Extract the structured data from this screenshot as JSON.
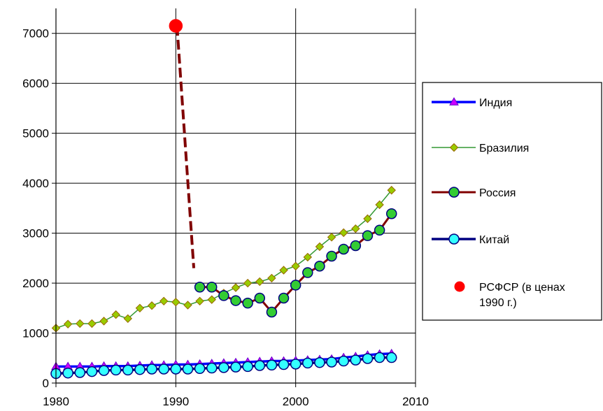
{
  "chart_data": {
    "type": "line",
    "title": "",
    "xlabel": "",
    "ylabel": "",
    "xlim": [
      1980,
      2010
    ],
    "ylim": [
      0,
      7500
    ],
    "x_ticks": [
      1980,
      1990,
      2000,
      2010
    ],
    "y_ticks": [
      0,
      1000,
      2000,
      3000,
      4000,
      5000,
      6000,
      7000
    ],
    "grid": true,
    "legend_position": "right",
    "series": [
      {
        "name": "Индия",
        "color": "#0000ff",
        "marker": "triangle",
        "marker_color": "#cc00ff",
        "x": [
          1980,
          1981,
          1982,
          1983,
          1984,
          1985,
          1986,
          1987,
          1988,
          1989,
          1990,
          1991,
          1992,
          1993,
          1994,
          1995,
          1996,
          1997,
          1998,
          1999,
          2000,
          2001,
          2002,
          2003,
          2004,
          2005,
          2006,
          2007,
          2008
        ],
        "y": [
          330,
          330,
          330,
          330,
          340,
          340,
          340,
          350,
          360,
          360,
          370,
          370,
          380,
          390,
          400,
          410,
          420,
          430,
          440,
          440,
          450,
          460,
          470,
          480,
          510,
          530,
          560,
          580,
          590
        ]
      },
      {
        "name": "Бразилия",
        "color": "#339933",
        "marker": "diamond",
        "marker_color": "#99cc00",
        "x": [
          1980,
          1981,
          1982,
          1983,
          1984,
          1985,
          1986,
          1987,
          1988,
          1989,
          1990,
          1991,
          1992,
          1993,
          1994,
          1995,
          1996,
          1997,
          1998,
          1999,
          2000,
          2001,
          2002,
          2003,
          2004,
          2005,
          2006,
          2007,
          2008
        ],
        "y": [
          1100,
          1180,
          1190,
          1190,
          1240,
          1370,
          1290,
          1500,
          1550,
          1640,
          1620,
          1560,
          1640,
          1670,
          1800,
          1910,
          2000,
          2030,
          2100,
          2260,
          2340,
          2520,
          2730,
          2920,
          3010,
          3090,
          3290,
          3570,
          3860
        ]
      },
      {
        "name": "Россия",
        "color": "#800000",
        "marker": "circle",
        "marker_color": "#33cc33",
        "x": [
          1992,
          1993,
          1994,
          1995,
          1996,
          1997,
          1998,
          1999,
          2000,
          2001,
          2002,
          2003,
          2004,
          2005,
          2006,
          2007,
          2008
        ],
        "y": [
          1920,
          1920,
          1750,
          1650,
          1600,
          1700,
          1420,
          1700,
          1960,
          2210,
          2340,
          2540,
          2680,
          2750,
          2950,
          3060,
          3390
        ]
      },
      {
        "name": "Китай",
        "color": "#000080",
        "marker": "circle",
        "marker_color": "#33ffff",
        "x": [
          1980,
          1981,
          1982,
          1983,
          1984,
          1985,
          1986,
          1987,
          1988,
          1989,
          1990,
          1991,
          1992,
          1993,
          1994,
          1995,
          1996,
          1997,
          1998,
          1999,
          2000,
          2001,
          2002,
          2003,
          2004,
          2005,
          2006,
          2007,
          2008
        ],
        "y": [
          190,
          200,
          210,
          230,
          250,
          260,
          260,
          270,
          280,
          280,
          280,
          280,
          290,
          300,
          310,
          320,
          330,
          350,
          360,
          370,
          380,
          400,
          410,
          420,
          440,
          460,
          490,
          510,
          510
        ]
      },
      {
        "name": "РСФСР (в ценах 1990 г.)",
        "color": "#ff0000",
        "marker": "circle",
        "marker_color": "#ff0000",
        "x": [
          1990
        ],
        "y": [
          7150
        ]
      }
    ],
    "connector": {
      "color": "#800000",
      "style": "dashed",
      "x": [
        1990.1,
        1991.5
      ],
      "y": [
        7150,
        2300
      ]
    }
  }
}
